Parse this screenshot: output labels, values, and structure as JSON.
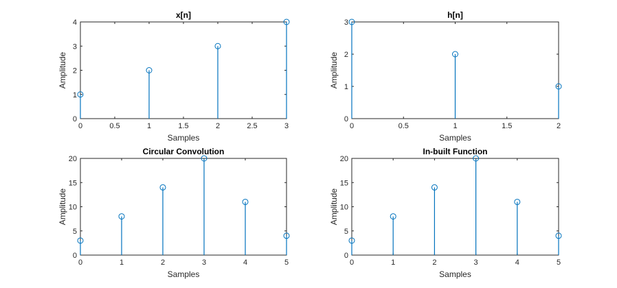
{
  "chart_data": [
    {
      "type": "stem",
      "title": "x[n]",
      "xlabel": "Samples",
      "ylabel": "Amplitude",
      "x": [
        0,
        1,
        2,
        3
      ],
      "values": [
        1,
        2,
        3,
        4
      ],
      "xlim": [
        0,
        3
      ],
      "ylim": [
        0,
        4
      ],
      "xticks": [
        0,
        0.5,
        1,
        1.5,
        2,
        2.5,
        3
      ],
      "xtick_labels": [
        "0",
        "0.5",
        "1",
        "1.5",
        "2",
        "2.5",
        "3"
      ],
      "yticks": [
        0,
        1,
        2,
        3,
        4
      ],
      "ytick_labels": [
        "0",
        "1",
        "2",
        "3",
        "4"
      ],
      "grid": true,
      "color": "#0072BD"
    },
    {
      "type": "stem",
      "title": "h[n]",
      "xlabel": "Samples",
      "ylabel": "Amplitude",
      "x": [
        0,
        1,
        2
      ],
      "values": [
        3,
        2,
        1
      ],
      "xlim": [
        0,
        2
      ],
      "ylim": [
        0,
        3
      ],
      "xticks": [
        0,
        0.5,
        1,
        1.5,
        2
      ],
      "xtick_labels": [
        "0",
        "0.5",
        "1",
        "1.5",
        "2"
      ],
      "yticks": [
        0,
        1,
        2,
        3
      ],
      "ytick_labels": [
        "0",
        "1",
        "2",
        "3"
      ],
      "grid": true,
      "color": "#0072BD"
    },
    {
      "type": "stem",
      "title": "Circular Convolution",
      "xlabel": "Samples",
      "ylabel": "Amplitude",
      "x": [
        0,
        1,
        2,
        3,
        4,
        5
      ],
      "values": [
        3,
        8,
        14,
        20,
        11,
        4
      ],
      "xlim": [
        0,
        5
      ],
      "ylim": [
        0,
        20
      ],
      "xticks": [
        0,
        1,
        2,
        3,
        4,
        5
      ],
      "xtick_labels": [
        "0",
        "1",
        "2",
        "3",
        "4",
        "5"
      ],
      "yticks": [
        0,
        5,
        10,
        15,
        20
      ],
      "ytick_labels": [
        "0",
        "5",
        "10",
        "15",
        "20"
      ],
      "grid": true,
      "color": "#0072BD"
    },
    {
      "type": "stem",
      "title": "In-built Function",
      "xlabel": "Samples",
      "ylabel": "Amplitude",
      "x": [
        0,
        1,
        2,
        3,
        4,
        5
      ],
      "values": [
        3,
        8,
        14,
        20,
        11,
        4
      ],
      "xlim": [
        0,
        5
      ],
      "ylim": [
        0,
        20
      ],
      "xticks": [
        0,
        1,
        2,
        3,
        4,
        5
      ],
      "xtick_labels": [
        "0",
        "1",
        "2",
        "3",
        "4",
        "5"
      ],
      "yticks": [
        0,
        5,
        10,
        15,
        20
      ],
      "ytick_labels": [
        "0",
        "5",
        "10",
        "15",
        "20"
      ],
      "grid": true,
      "color": "#0072BD"
    }
  ]
}
